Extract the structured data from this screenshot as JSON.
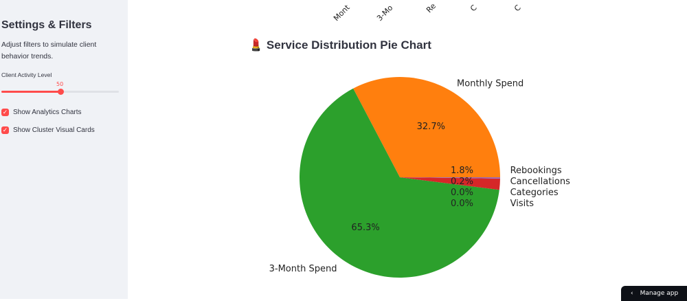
{
  "sidebar": {
    "title": "Settings & Filters",
    "description": "Adjust filters to simulate client behavior trends.",
    "slider": {
      "label": "Client Activity Level",
      "value": 50,
      "min": 0,
      "max": 100
    },
    "checkboxes": [
      {
        "label": "Show Analytics Charts",
        "checked": true
      },
      {
        "label": "Show Cluster Visual Cards",
        "checked": true
      }
    ]
  },
  "top_axis_labels": [
    "Mont",
    "3-Mo",
    "Re",
    "C",
    "C"
  ],
  "section": {
    "icon": "lipstick-icon",
    "icon_glyph": "💄",
    "title": "Service Distribution Pie Chart"
  },
  "chart_data": {
    "type": "pie",
    "start_angle": 0,
    "direction": "counterclockwise",
    "categories": [
      "Monthly Spend",
      "3-Month Spend",
      "Rebookings",
      "Cancellations",
      "Categories",
      "Visits"
    ],
    "values": [
      32.7,
      65.3,
      1.8,
      0.2,
      0.0,
      0.0
    ],
    "pct_labels": [
      "32.7%",
      "65.3%",
      "1.8%",
      "0.2%",
      "0.0%",
      "0.0%"
    ],
    "colors": [
      "#ff7f0e",
      "#2ca02c",
      "#d62728",
      "#9467bd",
      "#8c564b",
      "#1f77b4"
    ]
  },
  "footer": {
    "manage_app": "Manage app"
  }
}
